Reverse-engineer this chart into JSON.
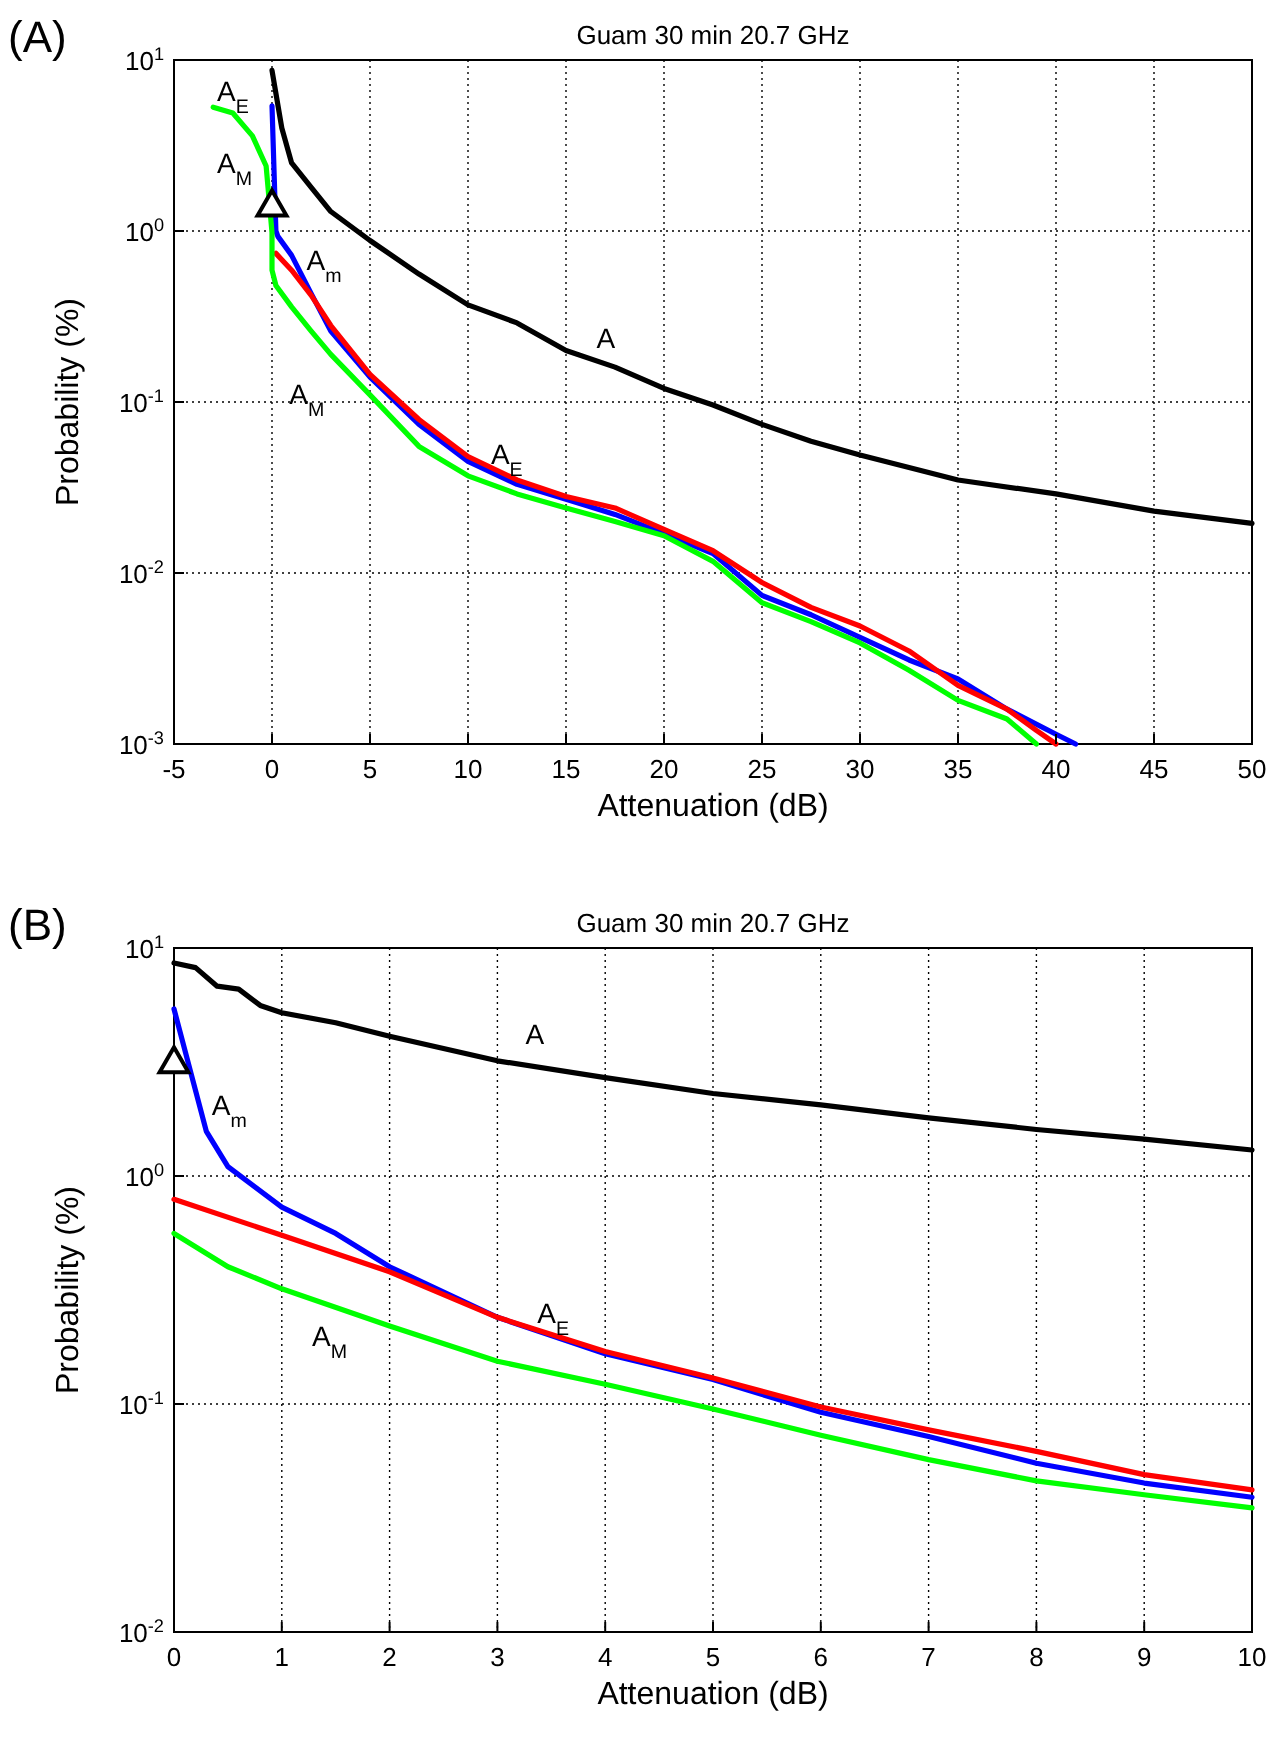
{
  "chart_data": [
    {
      "type": "line",
      "title": "Guam 30 min 20.7 GHz",
      "xlabel": "Attenuation (dB)",
      "ylabel": "Probability (%)",
      "log": "y",
      "grid": true,
      "xlim": [
        -5,
        50
      ],
      "xticks": [
        -5,
        0,
        5,
        10,
        15,
        20,
        25,
        30,
        35,
        40,
        45,
        50
      ],
      "ylim": [
        0.001,
        10
      ],
      "yticks": [
        {
          "value": 0.001,
          "label": "10$^{-3}$"
        },
        {
          "value": 0.01,
          "label": "10$^{-2}$"
        },
        {
          "value": 0.1,
          "label": "10$^{-1}$"
        },
        {
          "value": 1,
          "label": "10$^{0}$"
        },
        {
          "value": 10,
          "label": "10$^{1}$"
        }
      ],
      "series": [
        {
          "color": "#000000",
          "x": [
            0,
            0.5,
            1,
            2,
            3,
            5,
            7.5,
            10,
            12.5,
            15,
            17.5,
            20,
            22.5,
            25,
            27.5,
            30,
            35,
            40,
            45,
            50
          ],
          "values": [
            8.7,
            4.0,
            2.5,
            1.8,
            1.3,
            0.88,
            0.56,
            0.37,
            0.29,
            0.2,
            0.16,
            0.12,
            0.096,
            0.074,
            0.059,
            0.049,
            0.035,
            0.029,
            0.023,
            0.0195
          ]
        },
        {
          "color": "#0000ff",
          "x": [
            0,
            0.2,
            0.3,
            1,
            2,
            3,
            5,
            7.5,
            10,
            12.5,
            15,
            17.5,
            20,
            22.5,
            25,
            27.5,
            30,
            32.5,
            35,
            37.5,
            40,
            41
          ],
          "values": [
            5.4,
            1.0,
            0.93,
            0.72,
            0.43,
            0.26,
            0.14,
            0.074,
            0.045,
            0.033,
            0.027,
            0.022,
            0.017,
            0.013,
            0.0074,
            0.0057,
            0.0042,
            0.0031,
            0.0024,
            0.0016,
            0.00114,
            0.001
          ]
        },
        {
          "color": "#ff0000",
          "x": [
            0.2,
            1,
            2,
            3,
            5,
            7.5,
            10,
            12.5,
            15,
            17.5,
            20,
            22.5,
            25,
            27.5,
            30,
            32.5,
            35,
            37.5,
            39,
            40
          ],
          "values": [
            0.74,
            0.59,
            0.42,
            0.28,
            0.145,
            0.079,
            0.048,
            0.035,
            0.028,
            0.024,
            0.018,
            0.0135,
            0.0088,
            0.0063,
            0.0049,
            0.0035,
            0.0022,
            0.0016,
            0.0012,
            0.001
          ]
        },
        {
          "color": "#00ff00",
          "x": [
            -3,
            -2,
            -1,
            -0.3,
            0,
            0,
            0.2,
            1,
            2,
            3,
            5,
            7.5,
            10,
            12.5,
            15,
            17.5,
            20,
            22.5,
            25,
            27.5,
            30,
            32.5,
            35,
            37.5,
            39
          ],
          "values": [
            5.3,
            4.9,
            3.6,
            2.4,
            0.98,
            0.59,
            0.48,
            0.36,
            0.26,
            0.19,
            0.11,
            0.055,
            0.037,
            0.029,
            0.024,
            0.02,
            0.0165,
            0.0117,
            0.0067,
            0.0052,
            0.0039,
            0.0027,
            0.0018,
            0.0014,
            0.001
          ]
        },
        {
          "type": "scatter",
          "color": "#000000",
          "marker": "triangle",
          "x": [
            0
          ],
          "values": [
            1.38
          ]
        }
      ],
      "annotations": [
        "(A)",
        "A$_{E}$",
        "A$_{M}$",
        "A$_{m}$",
        "A",
        "A$_{M}$",
        "A$_{E}$"
      ]
    },
    {
      "type": "line",
      "title": "Guam 30 min 20.7 GHz",
      "xlabel": "Attenuation (dB)",
      "ylabel": "Probability (%)",
      "log": "y",
      "grid": true,
      "xlim": [
        0,
        10
      ],
      "xticks": [
        0,
        1,
        2,
        3,
        4,
        5,
        6,
        7,
        8,
        9,
        10
      ],
      "ylim": [
        0.01,
        10
      ],
      "yticks": [
        {
          "value": 0.01,
          "label": "10$^{-2}$"
        },
        {
          "value": 0.1,
          "label": "10$^{-1}$"
        },
        {
          "value": 1,
          "label": "10$^{0}$"
        },
        {
          "value": 10,
          "label": "10$^{1}$"
        }
      ],
      "series": [
        {
          "color": "#000000",
          "x": [
            0,
            0.2,
            0.4,
            0.6,
            0.8,
            1,
            1.5,
            2,
            3,
            4,
            5,
            6,
            7,
            8,
            9,
            10
          ],
          "values": [
            8.6,
            8.2,
            6.8,
            6.6,
            5.6,
            5.2,
            4.7,
            4.1,
            3.2,
            2.7,
            2.3,
            2.05,
            1.8,
            1.6,
            1.45,
            1.3
          ]
        },
        {
          "color": "#0000ff",
          "x": [
            0,
            0.3,
            0.5,
            1,
            1.5,
            2,
            3,
            4,
            5,
            6,
            7,
            8,
            9,
            10
          ],
          "values": [
            5.4,
            1.57,
            1.1,
            0.73,
            0.56,
            0.4,
            0.24,
            0.166,
            0.128,
            0.092,
            0.072,
            0.055,
            0.045,
            0.039
          ]
        },
        {
          "color": "#ff0000",
          "x": [
            0,
            1,
            2,
            3,
            4,
            5,
            6,
            7,
            8,
            9,
            10
          ],
          "values": [
            0.79,
            0.55,
            0.38,
            0.24,
            0.17,
            0.13,
            0.097,
            0.077,
            0.062,
            0.049,
            0.042
          ]
        },
        {
          "color": "#00ff00",
          "x": [
            0,
            0.5,
            1,
            2,
            3,
            4,
            5,
            6,
            7,
            8,
            9,
            10
          ],
          "values": [
            0.56,
            0.4,
            0.32,
            0.22,
            0.154,
            0.122,
            0.095,
            0.073,
            0.057,
            0.046,
            0.04,
            0.035
          ]
        },
        {
          "type": "scatter",
          "color": "#000000",
          "marker": "triangle",
          "x": [
            0
          ],
          "values": [
            3.1
          ]
        }
      ],
      "annotations": [
        "(B)",
        "A",
        "A$_{m}$",
        "A$_{E}$",
        "A$_{M}$"
      ]
    }
  ]
}
